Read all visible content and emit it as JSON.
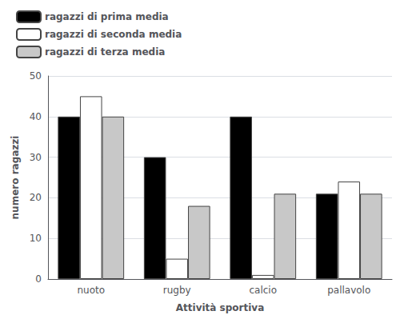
{
  "chart_data": {
    "type": "bar",
    "xlabel": "Attività sportiva",
    "ylabel": "numero ragazzi",
    "categories": [
      "nuoto",
      "rugby",
      "calcio",
      "pallavolo"
    ],
    "series": [
      {
        "name": "ragazzi di prima media",
        "color": "#000000",
        "values": [
          40,
          30,
          40,
          21
        ]
      },
      {
        "name": "ragazzi di seconda media",
        "color": "#ffffff",
        "values": [
          45,
          5,
          1,
          24
        ]
      },
      {
        "name": "ragazzi di terza media",
        "color": "#c8c8c8",
        "values": [
          40,
          18,
          21,
          21
        ]
      }
    ],
    "ylim": [
      0,
      50
    ],
    "yticks": [
      0,
      10,
      20,
      30,
      40,
      50
    ],
    "grid": true,
    "legend": "upper left"
  }
}
